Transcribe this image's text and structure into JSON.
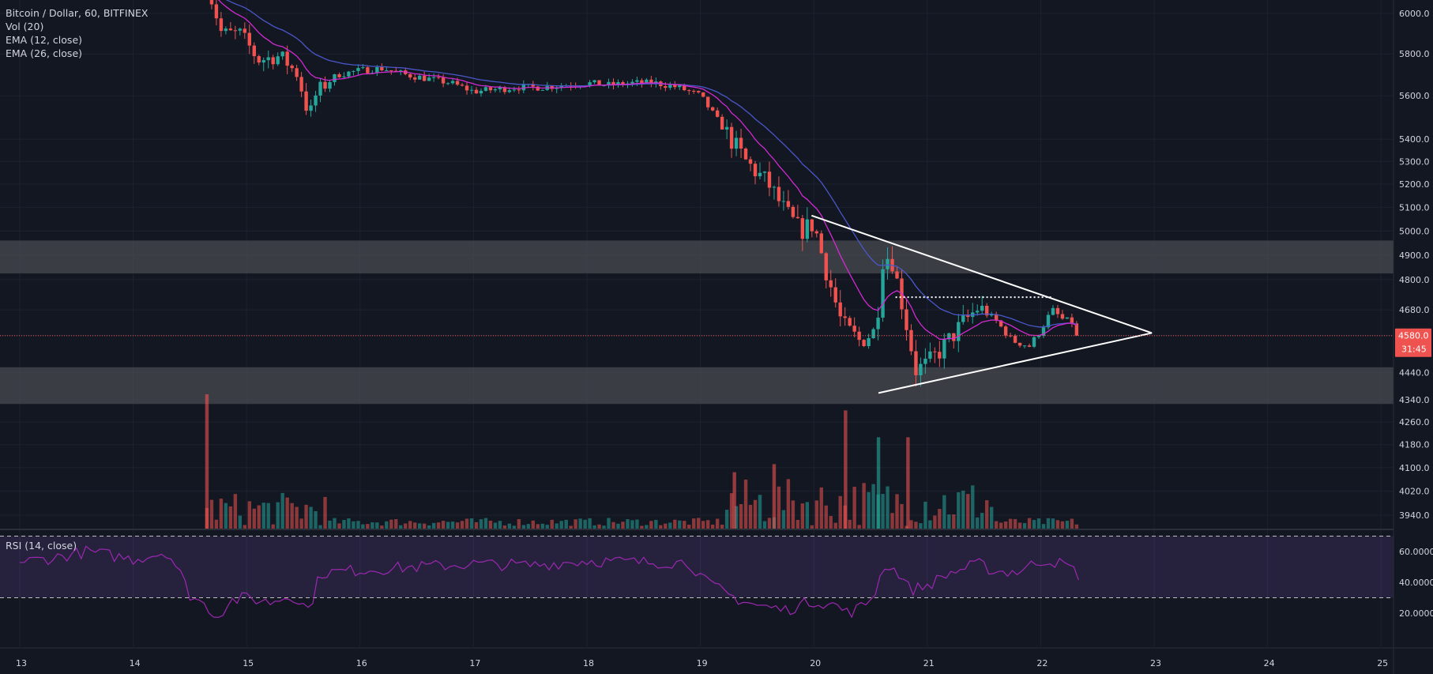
{
  "legend": {
    "symbol": "Bitcoin / Dollar, 60, BITFINEX",
    "vol": "Vol (20)",
    "ema12": "EMA (12, close)",
    "ema26": "EMA (26, close)",
    "rsi": "RSI (14, close)"
  },
  "price_badge": {
    "value": "4580.0",
    "timer": "31:45",
    "color": "#ef5350"
  },
  "colors": {
    "background": "#131722",
    "grid": "#1e2230",
    "up": "#26a69a",
    "down": "#ef5350",
    "ema12": "#d12ad1",
    "ema26": "#4a57c9",
    "rsi": "#9c27b0",
    "zone": "#4a4b52",
    "trendline": "#ffffff"
  },
  "chart_data": {
    "type": "candlestick",
    "title": "Bitcoin / Dollar, 60, BITFINEX",
    "y_ticks": [
      "6000.0",
      "5800.0",
      "5600.0",
      "5400.0",
      "5300.0",
      "5200.0",
      "5100.0",
      "5000.0",
      "4900.0",
      "4800.0",
      "4680.0",
      "4580.0",
      "4440.0",
      "4340.0",
      "4260.0",
      "4180.0",
      "4100.0",
      "4020.0",
      "3940.0"
    ],
    "x_ticks": [
      "13",
      "14",
      "15",
      "16",
      "17",
      "18",
      "19",
      "20",
      "21",
      "22",
      "23",
      "24",
      "25"
    ],
    "y_log_scale": true,
    "last_price": 4580,
    "zones": [
      {
        "from": 4825,
        "to": 4960
      },
      {
        "from": 4325,
        "to": 4460
      }
    ],
    "triangle": {
      "upper": [
        {
          "day": 19.98,
          "price": 5065
        },
        {
          "day": 22.98,
          "price": 4590
        }
      ],
      "lower": [
        {
          "day": 20.57,
          "price": 4365
        },
        {
          "day": 22.98,
          "price": 4590
        }
      ],
      "dotted_resistance": {
        "from_day": 20.72,
        "to_day": 22.1,
        "price": 4730
      }
    },
    "anchors": [
      [
        14.65,
        6150
      ],
      [
        14.78,
        5900
      ],
      [
        14.95,
        5900
      ],
      [
        15.1,
        5770
      ],
      [
        15.3,
        5790
      ],
      [
        15.45,
        5700
      ],
      [
        15.55,
        5500
      ],
      [
        15.62,
        5620
      ],
      [
        15.8,
        5700
      ],
      [
        16.0,
        5720
      ],
      [
        16.2,
        5730
      ],
      [
        16.4,
        5700
      ],
      [
        16.6,
        5680
      ],
      [
        16.8,
        5660
      ],
      [
        17.0,
        5620
      ],
      [
        17.2,
        5630
      ],
      [
        17.4,
        5640
      ],
      [
        17.6,
        5640
      ],
      [
        17.8,
        5650
      ],
      [
        18.0,
        5660
      ],
      [
        18.2,
        5650
      ],
      [
        18.4,
        5660
      ],
      [
        18.6,
        5660
      ],
      [
        18.8,
        5640
      ],
      [
        19.0,
        5600
      ],
      [
        19.2,
        5450
      ],
      [
        19.4,
        5300
      ],
      [
        19.6,
        5200
      ],
      [
        19.75,
        5080
      ],
      [
        19.88,
        5000
      ],
      [
        20.0,
        5030
      ],
      [
        20.1,
        4850
      ],
      [
        20.25,
        4620
      ],
      [
        20.4,
        4560
      ],
      [
        20.55,
        4600
      ],
      [
        20.6,
        4880
      ],
      [
        20.68,
        4900
      ],
      [
        20.78,
        4700
      ],
      [
        20.9,
        4450
      ],
      [
        21.0,
        4470
      ],
      [
        21.15,
        4540
      ],
      [
        21.3,
        4620
      ],
      [
        21.45,
        4690
      ],
      [
        21.6,
        4640
      ],
      [
        21.75,
        4560
      ],
      [
        21.9,
        4540
      ],
      [
        22.0,
        4600
      ],
      [
        22.1,
        4680
      ],
      [
        22.2,
        4640
      ],
      [
        22.3,
        4630
      ],
      [
        22.35,
        4580
      ]
    ],
    "volume_spikes": [
      {
        "day": 14.65,
        "height": 1.0,
        "dir": "down"
      },
      {
        "day": 20.28,
        "height": 0.88,
        "dir": "down"
      },
      {
        "day": 20.57,
        "height": 0.68,
        "dir": "up"
      },
      {
        "day": 20.83,
        "height": 0.68,
        "dir": "down"
      },
      {
        "day": 19.65,
        "height": 0.48,
        "dir": "down"
      },
      {
        "day": 19.3,
        "height": 0.42,
        "dir": "down"
      }
    ],
    "rsi": {
      "y_ticks": [
        "60.0000",
        "40.0000",
        "20.0000"
      ],
      "upper_band": 70,
      "lower_band": 30,
      "anchors": [
        [
          13.0,
          53
        ],
        [
          13.3,
          56
        ],
        [
          13.6,
          60
        ],
        [
          14.0,
          55
        ],
        [
          14.3,
          60
        ],
        [
          14.4,
          48
        ],
        [
          14.5,
          32
        ],
        [
          14.6,
          27
        ],
        [
          14.75,
          18
        ],
        [
          14.85,
          28
        ],
        [
          15.0,
          30
        ],
        [
          15.2,
          27
        ],
        [
          15.4,
          32
        ],
        [
          15.55,
          22
        ],
        [
          15.65,
          46
        ],
        [
          16.0,
          48
        ],
        [
          16.5,
          50
        ],
        [
          17.0,
          52
        ],
        [
          17.5,
          51
        ],
        [
          18.0,
          54
        ],
        [
          18.5,
          53
        ],
        [
          18.9,
          53
        ],
        [
          19.05,
          40
        ],
        [
          19.3,
          30
        ],
        [
          19.5,
          25
        ],
        [
          19.75,
          22
        ],
        [
          20.0,
          28
        ],
        [
          20.2,
          25
        ],
        [
          20.3,
          20
        ],
        [
          20.45,
          25
        ],
        [
          20.55,
          35
        ],
        [
          20.62,
          52
        ],
        [
          20.75,
          46
        ],
        [
          20.85,
          35
        ],
        [
          21.0,
          38
        ],
        [
          21.2,
          46
        ],
        [
          21.45,
          52
        ],
        [
          21.6,
          47
        ],
        [
          21.8,
          47
        ],
        [
          22.0,
          54
        ],
        [
          22.1,
          54
        ],
        [
          22.25,
          50
        ],
        [
          22.35,
          44
        ]
      ]
    }
  }
}
